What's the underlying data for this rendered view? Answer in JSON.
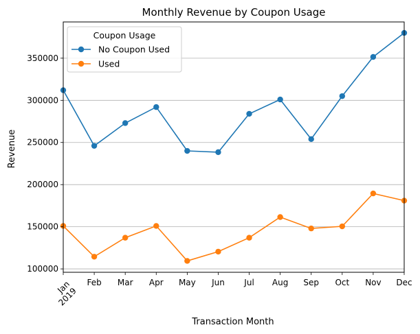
{
  "chart_data": {
    "type": "line",
    "title": "Monthly Revenue by Coupon Usage",
    "xlabel": "Transaction Month",
    "ylabel": "Revenue",
    "categories": [
      "Jan\n2019",
      "Feb",
      "Mar",
      "Apr",
      "May",
      "Jun",
      "Jul",
      "Aug",
      "Sep",
      "Oct",
      "Nov",
      "Dec"
    ],
    "ylim": [
      96000,
      393000
    ],
    "yticks": [
      100000,
      150000,
      200000,
      250000,
      300000,
      350000
    ],
    "ytick_labels": [
      "100000",
      "150000",
      "200000",
      "250000",
      "300000",
      "350000"
    ],
    "grid": "y",
    "legend": {
      "title": "Coupon Usage",
      "placement": "upper-left"
    },
    "series": [
      {
        "name": "No Coupon Used",
        "color": "#1f77b4",
        "values": [
          312000,
          246000,
          273000,
          292000,
          240000,
          238500,
          284000,
          301000,
          254000,
          305000,
          351500,
          380000
        ]
      },
      {
        "name": "Used",
        "color": "#ff7f0e",
        "values": [
          151000,
          114500,
          137000,
          151000,
          109500,
          120500,
          137000,
          161500,
          148000,
          150500,
          189500,
          181000
        ]
      }
    ]
  }
}
